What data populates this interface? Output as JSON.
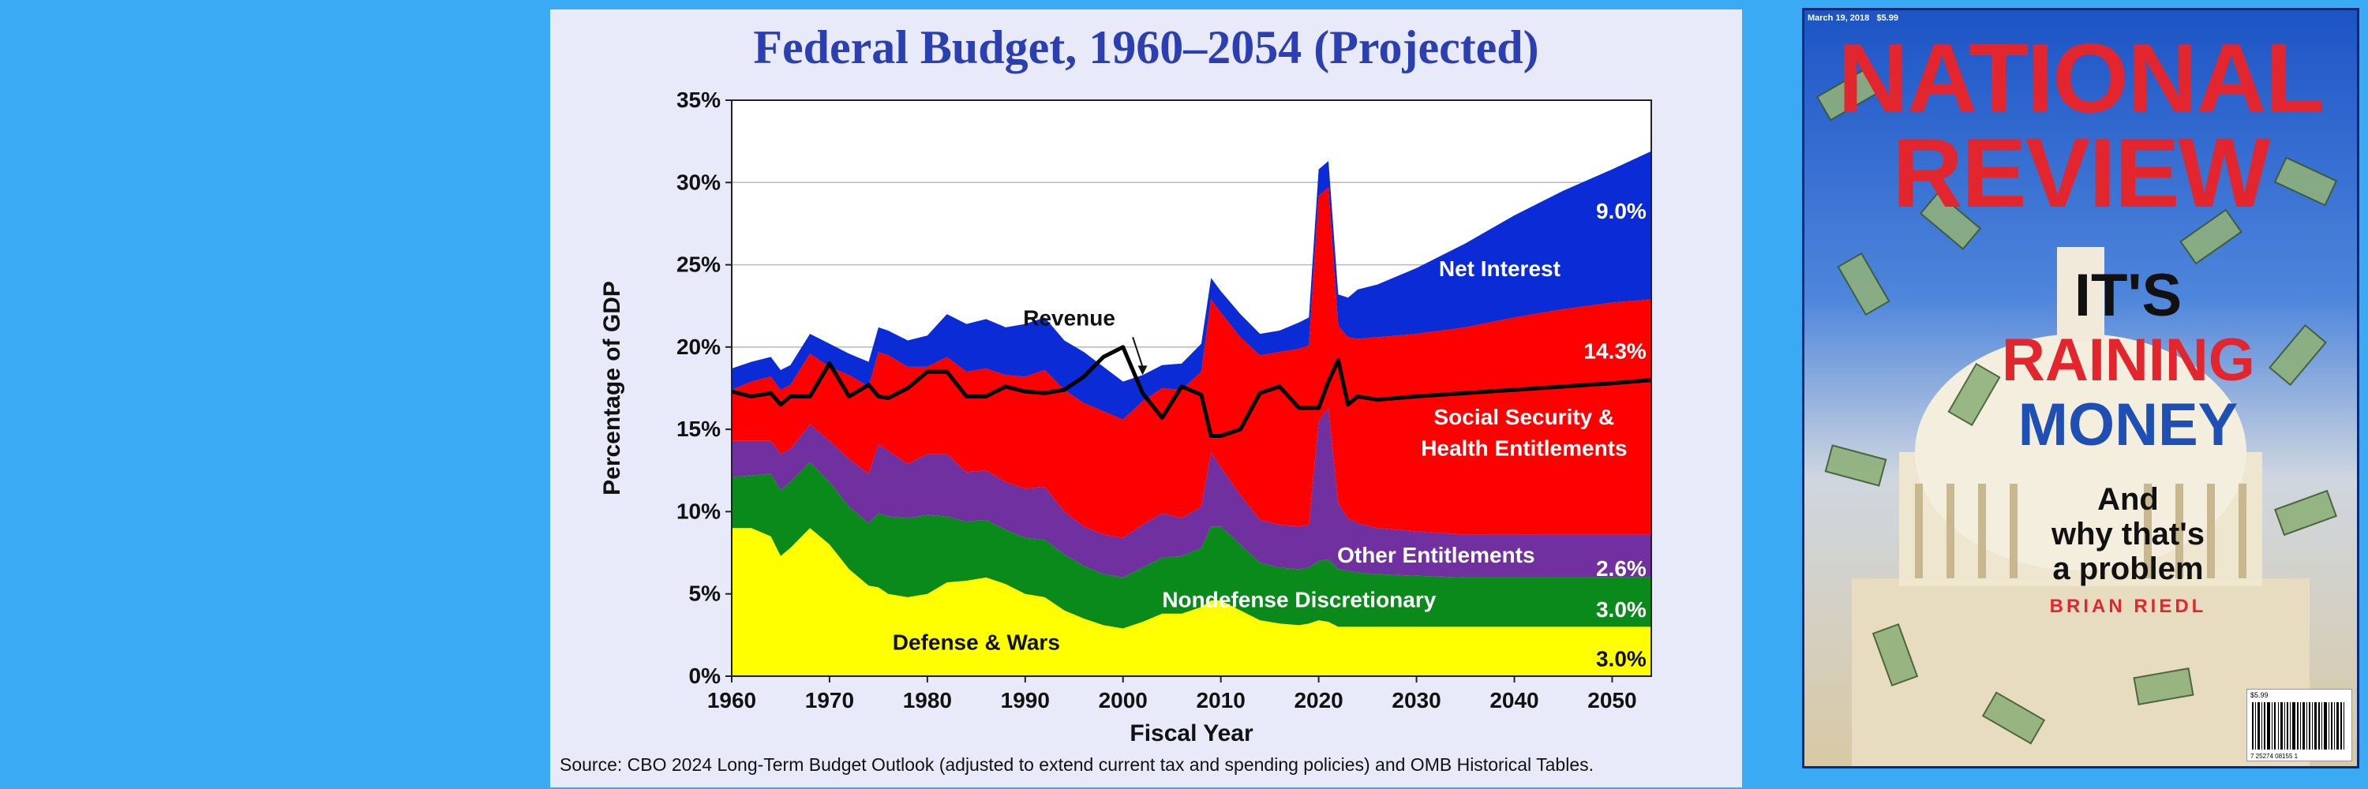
{
  "slide": {
    "title": "Federal Budget, 1960–2054 (Projected)",
    "source": "Source: CBO 2024 Long-Term Budget Outlook (adjusted to extend current tax and spending policies) and OMB Historical Tables."
  },
  "chart_data": {
    "type": "area",
    "title": "Federal Budget, 1960–2054 (Projected)",
    "xlabel": "Fiscal Year",
    "ylabel": "Percentage of GDP",
    "xlim": [
      1960,
      2054
    ],
    "ylim": [
      0,
      35
    ],
    "x_ticks": [
      1960,
      1970,
      1980,
      1990,
      2000,
      2010,
      2020,
      2030,
      2040,
      2050
    ],
    "y_ticks": [
      0,
      5,
      10,
      15,
      20,
      25,
      30,
      35
    ],
    "y_tick_labels": [
      "0%",
      "5%",
      "10%",
      "15%",
      "20%",
      "25%",
      "30%",
      "35%"
    ],
    "grid": "horizontal",
    "stacking": "stacked",
    "x": [
      1960,
      1962,
      1964,
      1965,
      1966,
      1968,
      1970,
      1972,
      1974,
      1975,
      1976,
      1978,
      1980,
      1982,
      1984,
      1986,
      1988,
      1990,
      1992,
      1994,
      1996,
      1998,
      2000,
      2002,
      2004,
      2006,
      2008,
      2009,
      2010,
      2012,
      2014,
      2016,
      2018,
      2019,
      2020,
      2021,
      2022,
      2023,
      2024,
      2026,
      2030,
      2035,
      2040,
      2045,
      2050,
      2054
    ],
    "series": [
      {
        "name": "Defense & Wars",
        "color": "#ffff00",
        "values": [
          9.0,
          9.0,
          8.5,
          7.3,
          7.8,
          9.0,
          8.0,
          6.5,
          5.5,
          5.4,
          5.0,
          4.8,
          5.0,
          5.7,
          5.8,
          6.0,
          5.6,
          5.0,
          4.8,
          4.0,
          3.5,
          3.1,
          2.9,
          3.3,
          3.8,
          3.8,
          4.2,
          4.6,
          4.6,
          4.0,
          3.4,
          3.2,
          3.1,
          3.2,
          3.4,
          3.3,
          3.0,
          3.0,
          3.0,
          3.0,
          3.0,
          3.0,
          3.0,
          3.0,
          3.0,
          3.0
        ]
      },
      {
        "name": "Nondefense Discretionary",
        "color": "#0a8a1a",
        "values": [
          3.1,
          3.2,
          3.8,
          4.0,
          4.0,
          4.0,
          3.8,
          3.8,
          3.8,
          4.5,
          4.7,
          4.8,
          4.8,
          4.0,
          3.6,
          3.5,
          3.3,
          3.4,
          3.5,
          3.4,
          3.2,
          3.1,
          3.1,
          3.3,
          3.4,
          3.5,
          3.6,
          4.5,
          4.5,
          4.0,
          3.5,
          3.4,
          3.4,
          3.4,
          3.6,
          3.8,
          3.5,
          3.4,
          3.3,
          3.2,
          3.1,
          3.0,
          3.0,
          3.0,
          3.0,
          3.0
        ]
      },
      {
        "name": "Other Entitlements",
        "color": "#7030a0",
        "values": [
          2.2,
          2.1,
          2.0,
          2.2,
          2.0,
          2.3,
          2.5,
          2.9,
          3.0,
          4.2,
          4.0,
          3.3,
          3.7,
          3.8,
          3.0,
          3.0,
          2.9,
          3.0,
          3.2,
          2.6,
          2.4,
          2.4,
          2.4,
          2.6,
          2.7,
          2.3,
          2.5,
          4.5,
          3.6,
          3.0,
          2.6,
          2.6,
          2.6,
          2.6,
          8.5,
          9.2,
          4.0,
          3.2,
          3.0,
          2.8,
          2.7,
          2.6,
          2.6,
          2.6,
          2.6,
          2.6
        ]
      },
      {
        "name": "Social Security & Health Entitlements",
        "color": "#ff0000",
        "values": [
          3.1,
          3.6,
          3.9,
          3.9,
          3.9,
          4.3,
          4.5,
          5.1,
          5.3,
          5.6,
          5.8,
          5.9,
          5.3,
          5.9,
          6.1,
          6.2,
          6.5,
          6.8,
          7.1,
          7.4,
          7.5,
          7.5,
          7.2,
          7.5,
          7.6,
          7.8,
          8.2,
          9.3,
          9.4,
          9.6,
          10.0,
          10.5,
          10.8,
          10.9,
          13.7,
          13.4,
          10.8,
          11.0,
          11.2,
          11.6,
          12.0,
          12.6,
          13.2,
          13.7,
          14.1,
          14.3
        ]
      },
      {
        "name": "Net Interest",
        "color": "#0a2bd6",
        "values": [
          1.3,
          1.2,
          1.2,
          1.2,
          1.2,
          1.2,
          1.4,
          1.3,
          1.5,
          1.5,
          1.5,
          1.6,
          1.9,
          2.6,
          2.9,
          3.0,
          2.9,
          3.2,
          3.2,
          3.0,
          3.1,
          2.7,
          2.3,
          1.6,
          1.4,
          1.6,
          1.7,
          1.3,
          1.3,
          1.4,
          1.3,
          1.3,
          1.6,
          1.7,
          1.6,
          1.6,
          1.9,
          2.4,
          3.0,
          3.2,
          4.0,
          5.1,
          6.2,
          7.2,
          8.1,
          9.0
        ]
      }
    ],
    "revenue": {
      "name": "Revenue",
      "color": "#000000",
      "values": [
        17.3,
        17.0,
        17.2,
        16.5,
        17.0,
        17.0,
        19.0,
        17.0,
        17.7,
        17.0,
        16.9,
        17.5,
        18.5,
        18.5,
        17.0,
        17.0,
        17.6,
        17.3,
        17.2,
        17.4,
        18.2,
        19.4,
        20.0,
        17.2,
        15.7,
        17.6,
        17.1,
        14.6,
        14.6,
        15.0,
        17.2,
        17.6,
        16.3,
        16.3,
        16.3,
        17.9,
        19.2,
        16.5,
        17.0,
        16.8,
        17.0,
        17.2,
        17.4,
        17.6,
        17.8,
        18.0
      ]
    },
    "annotations": [
      {
        "text": "Revenue",
        "target": "revenue"
      },
      {
        "text": "Net Interest"
      },
      {
        "text": "Social Security &"
      },
      {
        "text": "Health Entitlements"
      },
      {
        "text": "Other Entitlements"
      },
      {
        "text": "Nondefense Discretionary"
      },
      {
        "text": "Defense & Wars"
      },
      {
        "text": "9.0%"
      },
      {
        "text": "14.3%"
      },
      {
        "text": "2.6%"
      },
      {
        "text": "3.0%"
      },
      {
        "text": "3.0%"
      }
    ]
  },
  "cover": {
    "date": "March 19, 2018",
    "price": "$5.99",
    "masthead_1": "NATIONAL",
    "masthead_2": "REVIEW",
    "headline_1": "IT'S",
    "headline_2": "RAINING",
    "headline_3": "MONEY",
    "subhead_1": "And",
    "subhead_2": "why that's",
    "subhead_3": "a problem",
    "author": "BRIAN RIEDL",
    "barcode_price": "$5.99",
    "barcode_code": "7 25274 08155 1"
  }
}
